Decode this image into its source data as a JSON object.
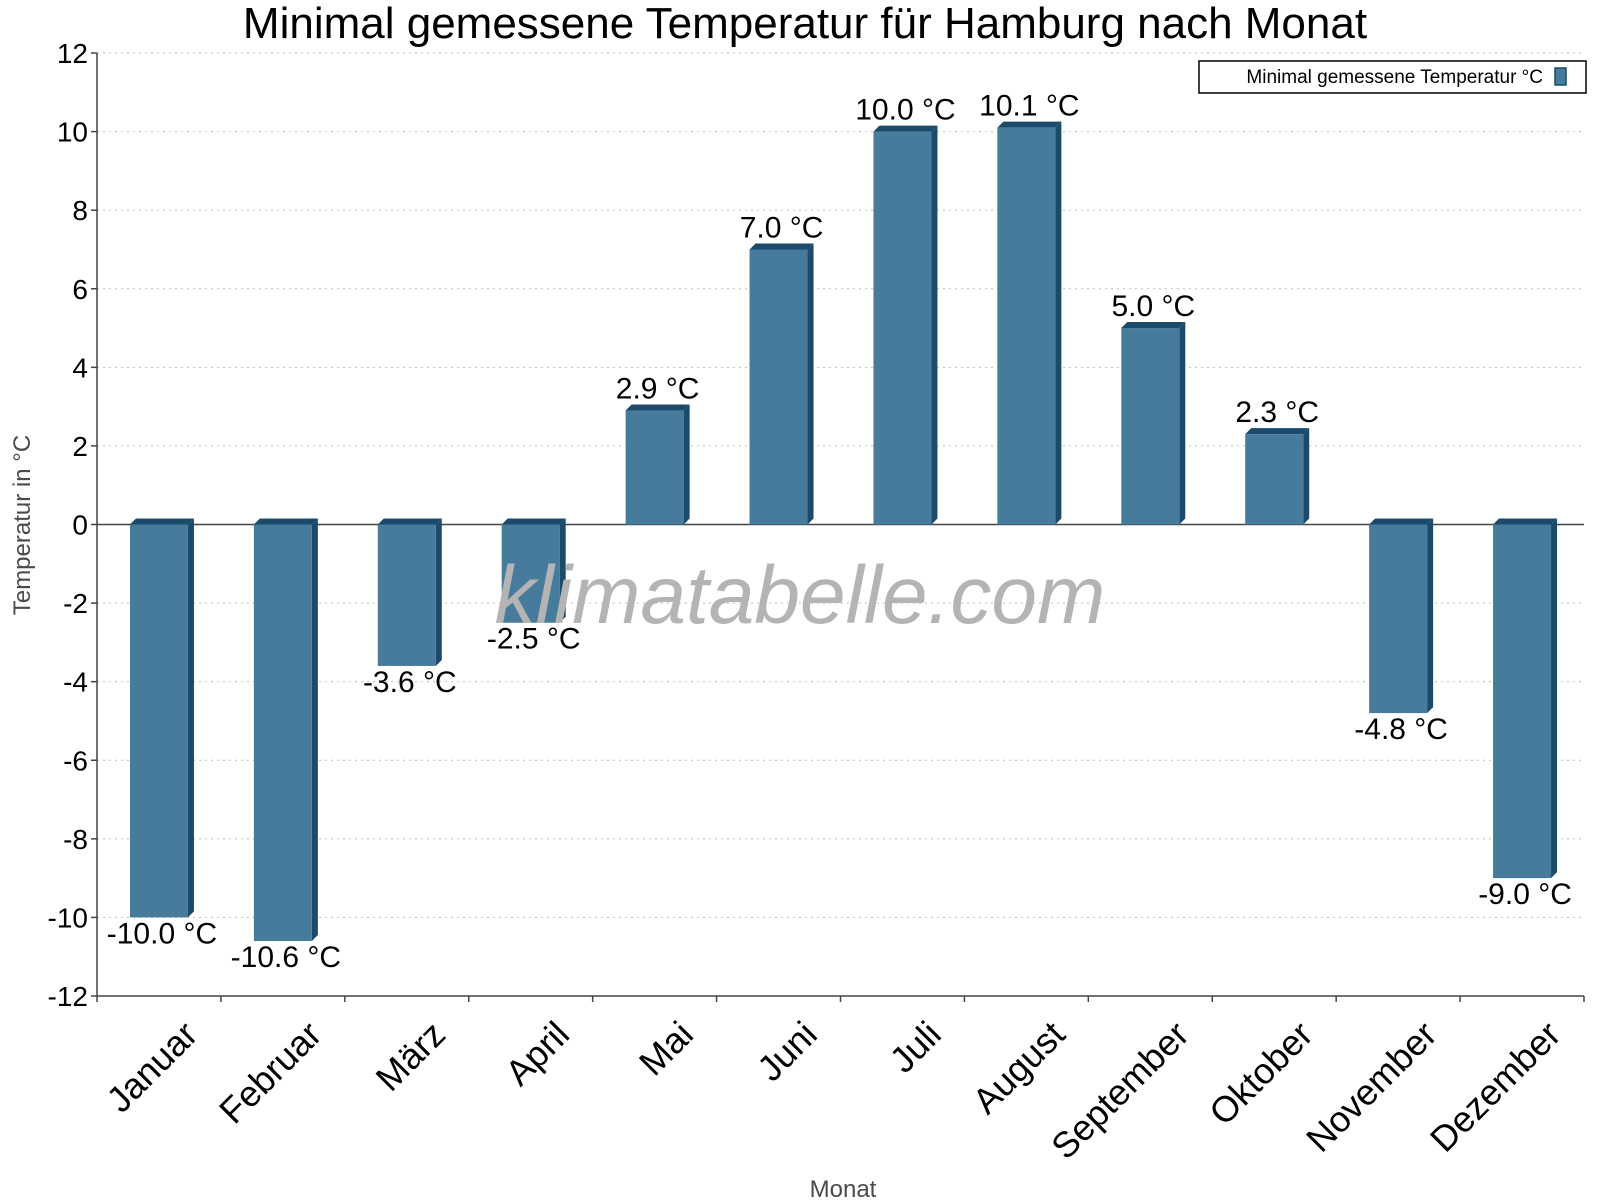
{
  "chart_data": {
    "type": "bar",
    "title": "Minimal gemessene Temperatur für Hamburg nach Monat",
    "xlabel": "Monat",
    "ylabel": "Temperatur in °C",
    "ylim": [
      -12,
      12
    ],
    "yticks": [
      -12,
      -10,
      -8,
      -6,
      -4,
      -2,
      0,
      2,
      4,
      6,
      8,
      10,
      12
    ],
    "grid": true,
    "legend_position": "top-right",
    "categories": [
      "Januar",
      "Februar",
      "März",
      "April",
      "Mai",
      "Juni",
      "Juli",
      "August",
      "September",
      "Oktober",
      "November",
      "Dezember"
    ],
    "series": [
      {
        "name": "Minimal gemessene Temperatur °C",
        "values": [
          -10.0,
          -10.6,
          -3.6,
          -2.5,
          2.9,
          7.0,
          10.0,
          10.1,
          5.0,
          2.3,
          -4.8,
          -9.0
        ],
        "data_labels": [
          "-10.0 °C",
          "-10.6 °C",
          "-3.6 °C",
          "-2.5 °C",
          "2.9 °C",
          "7.0 °C",
          "10.0 °C",
          "10.1 °C",
          "5.0 °C",
          "2.3 °C",
          "-4.8 °C",
          "-9.0 °C"
        ],
        "color": "#467b9c",
        "shade_color": "#1b4a6b"
      }
    ],
    "watermark": "klimatabelle.com"
  }
}
